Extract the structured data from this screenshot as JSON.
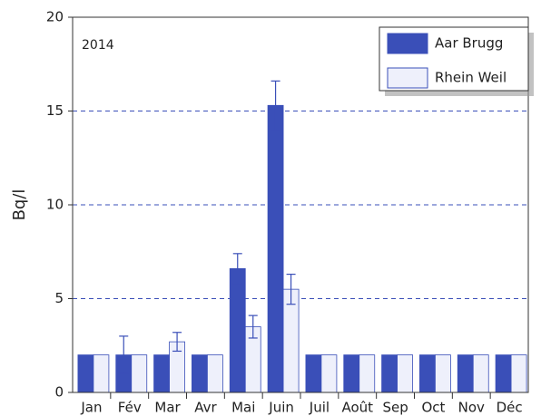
{
  "chart_data": {
    "type": "bar",
    "annotation": "2014",
    "y_label": "Bq/l",
    "categories": [
      "Jan",
      "Fév",
      "Mar",
      "Avr",
      "Mai",
      "Juin",
      "Juil",
      "Août",
      "Sep",
      "Oct",
      "Nov",
      "Déc"
    ],
    "series": [
      {
        "name": "Aar Brugg",
        "color": "#3a4fb8",
        "values": [
          2,
          2,
          2,
          2,
          6.6,
          15.3,
          2,
          2,
          2,
          2,
          2,
          2
        ],
        "errors": [
          null,
          1,
          null,
          null,
          0.8,
          1.3,
          null,
          null,
          null,
          null,
          null,
          null
        ]
      },
      {
        "name": "Rhein Weil",
        "color": "#eef0fb",
        "values": [
          2,
          2,
          2.7,
          2,
          3.5,
          5.5,
          2,
          2,
          2,
          2,
          2,
          2
        ],
        "errors": [
          null,
          null,
          0.5,
          null,
          0.6,
          0.8,
          null,
          null,
          null,
          null,
          null,
          null
        ]
      }
    ],
    "ylim": [
      0,
      20
    ],
    "yticks": [
      0,
      5,
      10,
      15,
      20
    ],
    "grid": true,
    "legend": "top-right"
  }
}
